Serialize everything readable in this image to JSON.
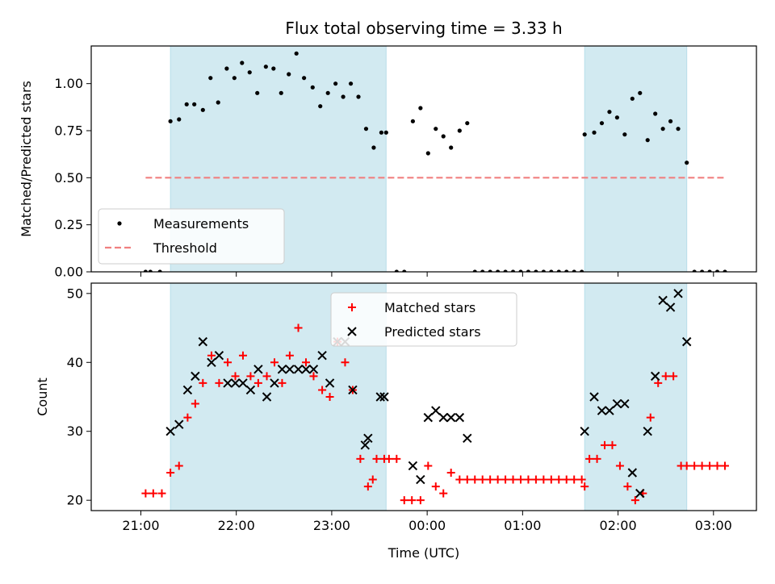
{
  "chart_data": {
    "title": "Flux total observing time = 3.33 h",
    "xlabel": "Time (UTC)",
    "x_ticks": [
      "21:00",
      "22:00",
      "23:00",
      "00:00",
      "01:00",
      "02:00",
      "03:00"
    ],
    "x_tick_hours": [
      0,
      1,
      2,
      3,
      4,
      5,
      6
    ],
    "x_origin": "21:00 UTC",
    "shaded_intervals_hours": [
      [
        0.31,
        2.57
      ],
      [
        4.65,
        5.72
      ]
    ],
    "shade_color": "#add8e6",
    "panels": [
      {
        "type": "scatter",
        "ylabel": "Matched/Predicted stars",
        "ylim": [
          0,
          1.2
        ],
        "yticks": [
          "0.00",
          "0.25",
          "0.50",
          "0.75",
          "1.00"
        ],
        "legend": "lower-left",
        "series": [
          {
            "name": "Measurements",
            "marker": "dot",
            "color": "#000000",
            "x": [
              0.05,
              0.1,
              0.2,
              0.31,
              0.4,
              0.48,
              0.56,
              0.65,
              0.73,
              0.81,
              0.9,
              0.98,
              1.06,
              1.14,
              1.22,
              1.31,
              1.39,
              1.47,
              1.55,
              1.63,
              1.71,
              1.8,
              1.88,
              1.96,
              2.04,
              2.12,
              2.2,
              2.28,
              2.36,
              2.44,
              2.52,
              2.57,
              2.68,
              2.76,
              2.85,
              2.93,
              3.01,
              3.09,
              3.17,
              3.25,
              3.34,
              3.42,
              3.5,
              3.58,
              3.66,
              3.74,
              3.82,
              3.9,
              3.98,
              4.06,
              4.14,
              4.22,
              4.3,
              4.38,
              4.46,
              4.54,
              4.62,
              4.65,
              4.75,
              4.83,
              4.91,
              4.99,
              5.07,
              5.15,
              5.23,
              5.31,
              5.39,
              5.47,
              5.55,
              5.63,
              5.72,
              5.8,
              5.88,
              5.96,
              6.04,
              6.12
            ],
            "y": [
              0,
              0,
              0,
              0.8,
              0.81,
              0.89,
              0.89,
              0.86,
              1.03,
              0.9,
              1.08,
              1.03,
              1.11,
              1.06,
              0.95,
              1.09,
              1.08,
              0.95,
              1.05,
              1.16,
              1.03,
              0.98,
              0.88,
              0.95,
              1.0,
              0.93,
              1.0,
              0.93,
              0.76,
              0.66,
              0.74,
              0.74,
              0,
              0,
              0.8,
              0.87,
              0.63,
              0.76,
              0.72,
              0.66,
              0.75,
              0.79,
              0,
              0,
              0,
              0,
              0,
              0,
              0,
              0,
              0,
              0,
              0,
              0,
              0,
              0,
              0,
              0.73,
              0.74,
              0.79,
              0.85,
              0.82,
              0.73,
              0.92,
              0.95,
              0.7,
              0.84,
              0.76,
              0.8,
              0.76,
              0.58,
              0,
              0,
              0,
              0,
              0
            ]
          },
          {
            "name": "Threshold",
            "marker": "dashed-line",
            "color": "#f08080",
            "x": [
              0.05,
              6.12
            ],
            "y": [
              0.5,
              0.5
            ]
          }
        ]
      },
      {
        "type": "scatter",
        "ylabel": "Count",
        "ylim": [
          18.5,
          51.5
        ],
        "yticks": [
          "20",
          "30",
          "40",
          "50"
        ],
        "legend": "top-center",
        "series": [
          {
            "name": "Matched stars",
            "marker": "plus",
            "color": "#ff0000",
            "x": [
              0.05,
              0.13,
              0.22,
              0.31,
              0.4,
              0.49,
              0.57,
              0.65,
              0.74,
              0.82,
              0.91,
              0.99,
              1.07,
              1.15,
              1.23,
              1.32,
              1.4,
              1.48,
              1.56,
              1.65,
              1.73,
              1.81,
              1.9,
              1.98,
              2.06,
              2.14,
              2.22,
              2.3,
              2.38,
              2.43,
              2.47,
              2.55,
              2.6,
              2.68,
              2.76,
              2.84,
              2.93,
              3.01,
              3.09,
              3.17,
              3.25,
              3.34,
              3.42,
              3.5,
              3.58,
              3.66,
              3.74,
              3.82,
              3.9,
              3.98,
              4.06,
              4.14,
              4.22,
              4.3,
              4.38,
              4.46,
              4.54,
              4.62,
              4.65,
              4.7,
              4.78,
              4.86,
              4.94,
              5.02,
              5.1,
              5.18,
              5.26,
              5.34,
              5.42,
              5.5,
              5.58,
              5.66,
              5.72,
              5.8,
              5.88,
              5.96,
              6.04,
              6.12
            ],
            "y": [
              21,
              21,
              21,
              24,
              25,
              32,
              34,
              37,
              41,
              37,
              40,
              38,
              41,
              38,
              37,
              38,
              40,
              37,
              41,
              45,
              40,
              38,
              36,
              35,
              43,
              40,
              36,
              26,
              22,
              23,
              26,
              26,
              26,
              26,
              20,
              20,
              20,
              25,
              22,
              21,
              24,
              23,
              23,
              23,
              23,
              23,
              23,
              23,
              23,
              23,
              23,
              23,
              23,
              23,
              23,
              23,
              23,
              23,
              22,
              26,
              26,
              28,
              28,
              25,
              22,
              20,
              21,
              32,
              37,
              38,
              38,
              25,
              25,
              25,
              25,
              25,
              25,
              25
            ]
          },
          {
            "name": "Predicted stars",
            "marker": "x",
            "color": "#000000",
            "x": [
              0.31,
              0.4,
              0.49,
              0.57,
              0.65,
              0.74,
              0.82,
              0.91,
              0.99,
              1.07,
              1.15,
              1.23,
              1.32,
              1.4,
              1.48,
              1.56,
              1.65,
              1.73,
              1.81,
              1.9,
              1.98,
              2.06,
              2.14,
              2.22,
              2.35,
              2.38,
              2.51,
              2.55,
              2.85,
              2.93,
              3.01,
              3.09,
              3.17,
              3.25,
              3.34,
              3.42,
              4.65,
              4.75,
              4.83,
              4.91,
              4.99,
              5.07,
              5.15,
              5.23,
              5.31,
              5.39,
              5.47,
              5.55,
              5.63,
              5.72
            ],
            "y": [
              30,
              31,
              36,
              38,
              43,
              40,
              41,
              37,
              37,
              37,
              36,
              39,
              35,
              37,
              39,
              39,
              39,
              39,
              39,
              41,
              37,
              43,
              43,
              36,
              28,
              29,
              35,
              35,
              25,
              23,
              32,
              33,
              32,
              32,
              32,
              29,
              30,
              35,
              33,
              33,
              34,
              34,
              24,
              21,
              30,
              38,
              49,
              48,
              50,
              43
            ]
          }
        ]
      }
    ]
  }
}
